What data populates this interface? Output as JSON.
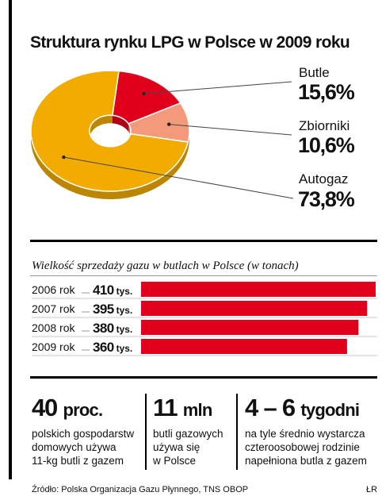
{
  "title": "Struktura rynku LPG w Polsce w 2009 roku",
  "colors": {
    "butle": "#e0001b",
    "zbiorniki": "#f29a7a",
    "autogaz": "#f2ac00",
    "text": "#111111"
  },
  "chart_data": [
    {
      "type": "pie",
      "donut": true,
      "title": "Struktura rynku LPG w Polsce w 2009 roku",
      "slices": [
        {
          "name": "Butle",
          "value": 15.6,
          "label": "15,6%",
          "color": "#e0001b"
        },
        {
          "name": "Zbiorniki",
          "value": 10.6,
          "label": "10,6%",
          "color": "#f29a7a"
        },
        {
          "name": "Autogaz",
          "value": 73.8,
          "label": "73,8%",
          "color": "#f2ac00"
        }
      ],
      "legend": "right"
    },
    {
      "type": "bar",
      "orientation": "horizontal",
      "title": "Wielkość sprzedaży gazu w butlach w Polsce (w tonach)",
      "categories": [
        "2006 rok",
        "2007 rok",
        "2008 rok",
        "2009 rok"
      ],
      "values": [
        410,
        395,
        380,
        360
      ],
      "value_labels": [
        "410",
        "395",
        "380",
        "360"
      ],
      "value_unit": "tys.",
      "color": "#e0001b",
      "xlim": [
        0,
        410
      ]
    }
  ],
  "stats": [
    {
      "number": "40",
      "unit": "proc.",
      "lines": [
        "polskich gospodarstw",
        "domowych używa",
        "11-kg butli z gazem"
      ]
    },
    {
      "number": "11",
      "unit": "mln",
      "lines": [
        "butli gazowych",
        "używa się",
        "w Polsce"
      ]
    },
    {
      "number": "4 – 6",
      "unit": "tygodni",
      "lines": [
        "na tyle średnio wystarcza",
        "czteroosobowej rodzinie",
        "napełniona butla z gazem"
      ]
    }
  ],
  "source": "Źródło: Polska Organizacja Gazu Płynnego, TNS OBOP",
  "credit": "ŁR"
}
